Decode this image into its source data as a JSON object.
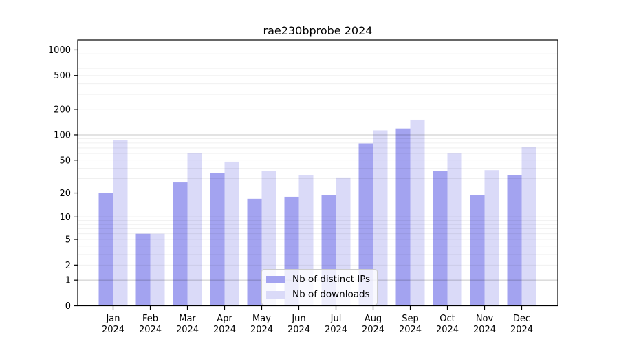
{
  "chart_data": {
    "type": "bar",
    "title": "rae230bprobe 2024",
    "categories": [
      "Jan",
      "Feb",
      "Mar",
      "Apr",
      "May",
      "Jun",
      "Jul",
      "Aug",
      "Sep",
      "Oct",
      "Nov",
      "Dec"
    ],
    "year_label": "2024",
    "series": [
      {
        "name": "Nb of distinct IPs",
        "color": "#a3a3f0",
        "values": [
          20,
          6,
          27,
          35,
          17,
          18,
          19,
          79,
          119,
          37,
          19,
          33
        ]
      },
      {
        "name": "Nb of downloads",
        "color": "#dadaf8",
        "values": [
          87,
          6,
          61,
          48,
          37,
          33,
          31,
          113,
          151,
          60,
          38,
          72
        ]
      }
    ],
    "yticks": [
      0,
      1,
      2,
      5,
      10,
      20,
      50,
      100,
      200,
      500,
      1000
    ],
    "scale": "log1p",
    "ylim": [
      0,
      1330
    ],
    "xlabel": "",
    "ylabel": "",
    "grid": true,
    "legend_position": "bottom-center"
  }
}
